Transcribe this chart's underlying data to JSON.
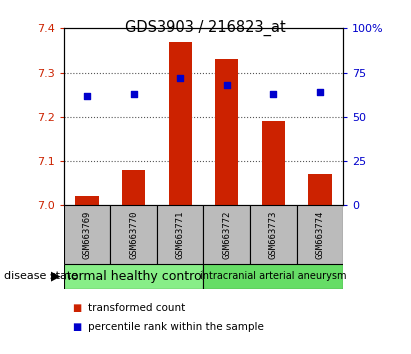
{
  "title": "GDS3903 / 216823_at",
  "samples": [
    "GSM663769",
    "GSM663770",
    "GSM663771",
    "GSM663772",
    "GSM663773",
    "GSM663774"
  ],
  "transformed_counts": [
    7.02,
    7.08,
    7.37,
    7.33,
    7.19,
    7.07
  ],
  "percentile_ranks": [
    62,
    63,
    72,
    68,
    63,
    64
  ],
  "ylim_left": [
    7.0,
    7.4
  ],
  "ylim_right": [
    0,
    100
  ],
  "yticks_left": [
    7.0,
    7.1,
    7.2,
    7.3,
    7.4
  ],
  "yticks_right": [
    0,
    25,
    50,
    75,
    100
  ],
  "ytick_labels_right": [
    "0",
    "25",
    "50",
    "75",
    "100%"
  ],
  "bar_color": "#cc2200",
  "dot_color": "#0000cc",
  "groups": [
    {
      "label": "normal healthy control",
      "samples": [
        0,
        1,
        2
      ],
      "color": "#88ee88"
    },
    {
      "label": "intracranial arterial aneurysm",
      "samples": [
        3,
        4,
        5
      ],
      "color": "#66dd66"
    }
  ],
  "group_box_color": "#bbbbbb",
  "tick_label_color_left": "#cc2200",
  "tick_label_color_right": "#0000cc",
  "dotted_line_color": "#555555",
  "bar_width": 0.5,
  "disease_state_label": "disease state",
  "legend_tc": "transformed count",
  "legend_pr": "percentile rank within the sample",
  "fig_bg": "#ffffff"
}
